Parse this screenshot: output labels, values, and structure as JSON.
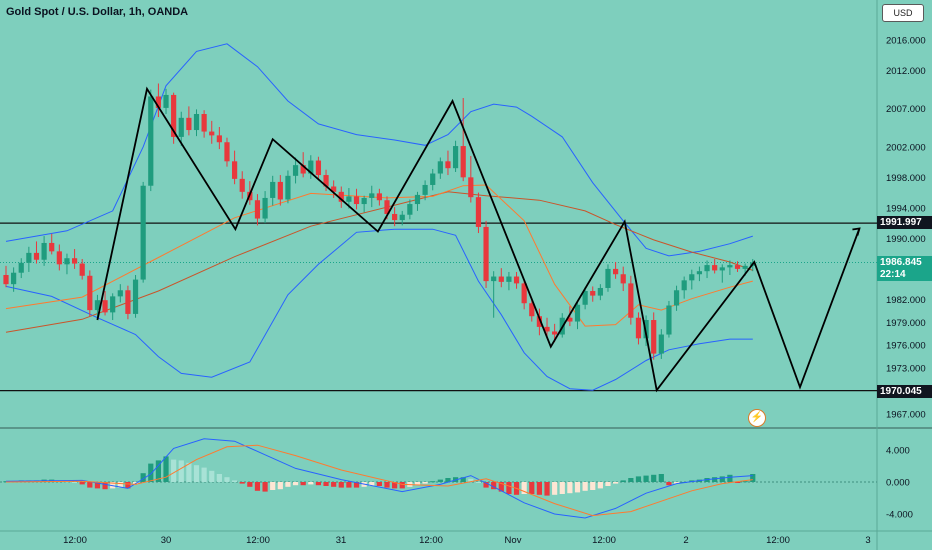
{
  "header": {
    "title": "Gold Spot / U.S. Dollar, 1h, OANDA",
    "currency": "USD"
  },
  "price_tags": {
    "resistance": "1991.997",
    "support": "1970.045",
    "last_price": "1986.845",
    "countdown": "22:14"
  },
  "colors": {
    "background": "#7ecfbd",
    "up_candle": "#1f9c7e",
    "down_candle": "#e8383d",
    "bollinger": "#2962ff",
    "ma_orange": "#ff7a2f",
    "macd_line": "#2962ff",
    "signal_line": "#ff7a2f",
    "hist_pos": "#1f9c7e",
    "hist_pos_weak": "#a8e2d6",
    "hist_neg": "#e8383d",
    "hist_neg_weak": "#fde6d4",
    "pattern": "#000000"
  },
  "icons": {
    "lightning": "lightning-icon"
  },
  "chart_data": [
    {
      "type": "candlestick",
      "title": "Gold Spot / U.S. Dollar, 1h, OANDA",
      "ylim": [
        1965,
        2019
      ],
      "y_ticks": [
        "2016.000",
        "2012.000",
        "2007.000",
        "2002.000",
        "1998.000",
        "1994.000",
        "1990.000",
        "1982.000",
        "1979.000",
        "1976.000",
        "1973.000",
        "1967.000"
      ],
      "x_ticks": [
        "12:00",
        "30",
        "12:00",
        "31",
        "12:00",
        "Nov",
        "12:00",
        "2",
        "12:00",
        "3"
      ],
      "horizontal_lines": [
        1991.997,
        1970.045
      ],
      "last_price": 1986.845,
      "candles_ohlc": [
        [
          1985.2,
          1986.4,
          1983.6,
          1984.0
        ],
        [
          1984.0,
          1986.2,
          1983.0,
          1985.5
        ],
        [
          1985.5,
          1987.4,
          1984.8,
          1986.8
        ],
        [
          1986.8,
          1988.9,
          1985.6,
          1988.1
        ],
        [
          1988.1,
          1989.6,
          1986.7,
          1987.2
        ],
        [
          1987.2,
          1990.3,
          1986.4,
          1989.4
        ],
        [
          1989.4,
          1990.6,
          1987.9,
          1988.3
        ],
        [
          1988.3,
          1989.2,
          1985.8,
          1986.6
        ],
        [
          1986.6,
          1988.0,
          1985.3,
          1987.4
        ],
        [
          1987.4,
          1988.6,
          1986.0,
          1986.7
        ],
        [
          1986.7,
          1987.3,
          1984.6,
          1985.1
        ],
        [
          1985.1,
          1985.8,
          1979.8,
          1980.6
        ],
        [
          1980.6,
          1982.6,
          1979.5,
          1981.9
        ],
        [
          1981.9,
          1983.1,
          1979.9,
          1980.3
        ],
        [
          1980.3,
          1982.8,
          1979.3,
          1982.4
        ],
        [
          1982.4,
          1984.0,
          1981.6,
          1983.2
        ],
        [
          1983.2,
          1983.8,
          1979.4,
          1980.1
        ],
        [
          1980.1,
          1985.2,
          1979.6,
          1984.6
        ],
        [
          1984.6,
          1997.4,
          1984.2,
          1996.9
        ],
        [
          1996.9,
          2009.5,
          1996.2,
          2008.6
        ],
        [
          2008.6,
          2010.3,
          2005.9,
          2007.1
        ],
        [
          2007.1,
          2009.6,
          2006.3,
          2008.8
        ],
        [
          2008.8,
          2009.1,
          2002.4,
          2003.3
        ],
        [
          2003.3,
          2006.6,
          2002.1,
          2005.8
        ],
        [
          2005.8,
          2007.3,
          2003.5,
          2004.2
        ],
        [
          2004.2,
          2006.9,
          2003.4,
          2006.3
        ],
        [
          2006.3,
          2006.8,
          2003.2,
          2004.0
        ],
        [
          2004.0,
          2005.4,
          2002.4,
          2003.5
        ],
        [
          2003.5,
          2004.6,
          2001.7,
          2002.6
        ],
        [
          2002.6,
          2003.2,
          1999.4,
          2000.1
        ],
        [
          2000.1,
          2001.5,
          1997.1,
          1997.8
        ],
        [
          1997.8,
          1998.8,
          1995.2,
          1996.1
        ],
        [
          1996.1,
          1997.5,
          1994.4,
          1995.0
        ],
        [
          1995.0,
          1995.8,
          1991.7,
          1992.6
        ],
        [
          1992.6,
          1996.2,
          1992.0,
          1995.3
        ],
        [
          1995.3,
          1998.2,
          1994.3,
          1997.4
        ],
        [
          1997.4,
          1998.3,
          1994.3,
          1995.1
        ],
        [
          1995.1,
          1998.9,
          1994.6,
          1998.2
        ],
        [
          1998.2,
          2000.6,
          1997.2,
          1999.6
        ],
        [
          1999.6,
          2001.3,
          1998.0,
          1998.5
        ],
        [
          1998.5,
          2000.9,
          1997.8,
          2000.2
        ],
        [
          2000.2,
          2000.7,
          1997.6,
          1998.3
        ],
        [
          1998.3,
          1999.0,
          1996.2,
          1996.8
        ],
        [
          1996.8,
          1997.6,
          1995.3,
          1996.1
        ],
        [
          1996.1,
          1996.8,
          1994.0,
          1994.8
        ],
        [
          1994.8,
          1996.6,
          1993.9,
          1995.5
        ],
        [
          1995.5,
          1996.5,
          1993.8,
          1994.5
        ],
        [
          1994.5,
          1995.6,
          1993.4,
          1995.3
        ],
        [
          1995.3,
          1996.9,
          1994.1,
          1995.9
        ],
        [
          1995.9,
          1996.5,
          1994.3,
          1995.0
        ],
        [
          1995.0,
          1995.5,
          1992.5,
          1993.2
        ],
        [
          1993.2,
          1994.1,
          1991.6,
          1992.4
        ],
        [
          1992.4,
          1993.6,
          1991.7,
          1993.1
        ],
        [
          1993.1,
          1995.1,
          1992.5,
          1994.5
        ],
        [
          1994.5,
          1996.1,
          1993.6,
          1995.7
        ],
        [
          1995.7,
          1997.6,
          1995.0,
          1997.0
        ],
        [
          1997.0,
          1999.1,
          1996.3,
          1998.5
        ],
        [
          1998.5,
          2000.6,
          1997.8,
          2000.1
        ],
        [
          2000.1,
          2001.5,
          1998.3,
          1999.2
        ],
        [
          1999.2,
          2002.8,
          1998.7,
          2002.1
        ],
        [
          2002.1,
          2008.4,
          1997.5,
          1998.0
        ],
        [
          1998.0,
          2000.8,
          1994.7,
          1995.4
        ],
        [
          1995.4,
          1996.0,
          1990.7,
          1991.5
        ],
        [
          1991.5,
          1992.3,
          1983.5,
          1984.4
        ],
        [
          1984.4,
          1985.7,
          1979.6,
          1985.0
        ],
        [
          1985.0,
          1986.1,
          1983.6,
          1984.3
        ],
        [
          1984.3,
          1985.6,
          1983.2,
          1985.0
        ],
        [
          1985.0,
          1985.6,
          1983.4,
          1984.1
        ],
        [
          1984.1,
          1984.6,
          1980.7,
          1981.5
        ],
        [
          1981.5,
          1982.2,
          1979.1,
          1979.8
        ],
        [
          1979.8,
          1980.8,
          1977.3,
          1978.4
        ],
        [
          1978.4,
          1979.6,
          1976.9,
          1977.8
        ],
        [
          1977.8,
          1978.8,
          1976.4,
          1977.4
        ],
        [
          1977.4,
          1980.2,
          1977.0,
          1979.6
        ],
        [
          1979.6,
          1981.1,
          1978.5,
          1979.1
        ],
        [
          1979.1,
          1981.8,
          1978.1,
          1981.3
        ],
        [
          1981.3,
          1983.6,
          1980.7,
          1983.1
        ],
        [
          1983.1,
          1983.7,
          1981.7,
          1982.5
        ],
        [
          1982.5,
          1984.0,
          1981.9,
          1983.5
        ],
        [
          1983.5,
          1986.6,
          1983.0,
          1986.0
        ],
        [
          1986.0,
          1986.9,
          1984.7,
          1985.3
        ],
        [
          1985.3,
          1986.3,
          1983.1,
          1984.1
        ],
        [
          1984.1,
          1985.1,
          1978.7,
          1979.6
        ],
        [
          1979.6,
          1980.3,
          1976.1,
          1976.9
        ],
        [
          1976.9,
          1979.9,
          1975.9,
          1979.3
        ],
        [
          1979.3,
          1980.3,
          1974.1,
          1974.9
        ],
        [
          1974.9,
          1978.1,
          1974.2,
          1977.4
        ],
        [
          1977.4,
          1981.8,
          1977.0,
          1981.2
        ],
        [
          1981.2,
          1983.8,
          1980.5,
          1983.2
        ],
        [
          1983.2,
          1985.0,
          1982.1,
          1984.5
        ],
        [
          1984.5,
          1985.9,
          1983.3,
          1985.3
        ],
        [
          1985.3,
          1986.3,
          1984.4,
          1985.7
        ],
        [
          1985.7,
          1987.1,
          1984.8,
          1986.5
        ],
        [
          1986.5,
          1987.3,
          1985.4,
          1985.8
        ],
        [
          1985.8,
          1986.6,
          1984.2,
          1986.2
        ],
        [
          1986.2,
          1987.1,
          1985.2,
          1986.5
        ],
        [
          1986.5,
          1987.0,
          1985.6,
          1986.0
        ],
        [
          1986.0,
          1986.7,
          1985.1,
          1986.4
        ],
        [
          1986.4,
          1987.3,
          1985.7,
          1986.845
        ]
      ],
      "bollinger_upper": [
        [
          0,
          1989.6
        ],
        [
          8,
          1991.0
        ],
        [
          14,
          1993.6
        ],
        [
          18,
          2002.0
        ],
        [
          21,
          2010.0
        ],
        [
          25,
          2014.5
        ],
        [
          29,
          2015.5
        ],
        [
          33,
          2012.5
        ],
        [
          37,
          2008.0
        ],
        [
          41,
          2005.0
        ],
        [
          46,
          2003.6
        ],
        [
          51,
          2002.9
        ],
        [
          55,
          2002.2
        ],
        [
          58,
          2003.6
        ],
        [
          61,
          2006.6
        ],
        [
          64,
          2007.6
        ],
        [
          67,
          2007.2
        ],
        [
          69,
          2006.0
        ],
        [
          73,
          2003.3
        ],
        [
          77,
          1997.3
        ],
        [
          81,
          1992.3
        ],
        [
          84,
          1988.7
        ],
        [
          87,
          1987.7
        ],
        [
          91,
          1988.3
        ],
        [
          95,
          1989.3
        ],
        [
          98,
          1990.3
        ]
      ],
      "bollinger_lower": [
        [
          0,
          1983.7
        ],
        [
          6,
          1982.4
        ],
        [
          12,
          1979.6
        ],
        [
          17,
          1977.4
        ],
        [
          20,
          1974.5
        ],
        [
          23,
          1972.3
        ],
        [
          27,
          1971.8
        ],
        [
          32,
          1973.8
        ],
        [
          37,
          1982.6
        ],
        [
          41,
          1986.6
        ],
        [
          46,
          1990.8
        ],
        [
          51,
          1991.2
        ],
        [
          56,
          1991.2
        ],
        [
          59,
          1990.4
        ],
        [
          62,
          1984.4
        ],
        [
          65,
          1980.0
        ],
        [
          68,
          1975.0
        ],
        [
          71,
          1971.9
        ],
        [
          74,
          1970.3
        ],
        [
          77,
          1970.1
        ],
        [
          80,
          1971.5
        ],
        [
          84,
          1974.0
        ],
        [
          87,
          1975.4
        ],
        [
          91,
          1976.2
        ],
        [
          95,
          1976.8
        ],
        [
          98,
          1976.8
        ]
      ],
      "ma_orange": [
        [
          0,
          1980.8
        ],
        [
          10,
          1982.3
        ],
        [
          20,
          1987.5
        ],
        [
          30,
          1992.7
        ],
        [
          40,
          1995.9
        ],
        [
          50,
          1995.3
        ],
        [
          56,
          1995.5
        ],
        [
          60,
          1996.9
        ],
        [
          63,
          1997.0
        ],
        [
          68,
          1992.3
        ],
        [
          72,
          1984.0
        ],
        [
          76,
          1978.5
        ],
        [
          80,
          1978.7
        ],
        [
          83,
          1981.3
        ],
        [
          86,
          1980.6
        ],
        [
          90,
          1982.1
        ],
        [
          95,
          1983.6
        ],
        [
          98,
          1984.4
        ]
      ],
      "ma_slow": [
        [
          0,
          1977.7
        ],
        [
          10,
          1979.4
        ],
        [
          20,
          1983.1
        ],
        [
          30,
          1987.6
        ],
        [
          40,
          1991.6
        ],
        [
          50,
          1994.1
        ],
        [
          58,
          1996.1
        ],
        [
          63,
          1995.6
        ],
        [
          70,
          1995.0
        ],
        [
          76,
          1993.6
        ],
        [
          80,
          1991.8
        ],
        [
          85,
          1989.8
        ],
        [
          90,
          1988.2
        ],
        [
          95,
          1986.9
        ],
        [
          98,
          1985.8
        ]
      ]
    },
    {
      "type": "macd",
      "ylim": [
        -5,
        6
      ],
      "y_ticks": [
        "4.000",
        "0.000",
        "-4.000"
      ],
      "histogram": [
        0.1,
        0.1,
        0.2,
        0.2,
        0.2,
        0.3,
        0.3,
        0.2,
        0.1,
        0.0,
        -0.3,
        -0.7,
        -0.8,
        -0.9,
        -0.8,
        -0.7,
        -0.8,
        -0.3,
        1.1,
        2.3,
        2.7,
        3.2,
        2.8,
        2.7,
        2.4,
        2.1,
        1.8,
        1.4,
        1.0,
        0.6,
        0.2,
        -0.2,
        -0.6,
        -1.1,
        -1.2,
        -1.0,
        -0.9,
        -0.6,
        -0.4,
        -0.4,
        -0.3,
        -0.4,
        -0.5,
        -0.6,
        -0.7,
        -0.7,
        -0.7,
        -0.6,
        -0.5,
        -0.5,
        -0.7,
        -0.8,
        -0.8,
        -0.6,
        -0.4,
        -0.2,
        0.1,
        0.3,
        0.5,
        0.6,
        0.6,
        0.4,
        0.0,
        -0.7,
        -0.9,
        -1.2,
        -1.5,
        -1.6,
        -1.5,
        -1.5,
        -1.6,
        -1.7,
        -1.6,
        -1.5,
        -1.4,
        -1.3,
        -1.1,
        -1.0,
        -0.8,
        -0.5,
        -0.2,
        0.2,
        0.5,
        0.7,
        0.8,
        0.9,
        1.0,
        -0.4,
        -0.2,
        0.0,
        0.2,
        0.3,
        0.5,
        0.6,
        0.7,
        0.9,
        -0.1,
        0.1,
        1.0
      ],
      "macd_line": [
        [
          0,
          0.1
        ],
        [
          10,
          0.2
        ],
        [
          16,
          -0.8
        ],
        [
          19,
          1.0
        ],
        [
          22,
          4.2
        ],
        [
          26,
          5.4
        ],
        [
          30,
          5.1
        ],
        [
          34,
          3.4
        ],
        [
          38,
          1.7
        ],
        [
          44,
          0.3
        ],
        [
          52,
          -1.2
        ],
        [
          57,
          -0.3
        ],
        [
          61,
          0.8
        ],
        [
          64,
          -0.6
        ],
        [
          68,
          -2.6
        ],
        [
          72,
          -4.0
        ],
        [
          76,
          -4.5
        ],
        [
          80,
          -3.3
        ],
        [
          84,
          -1.4
        ],
        [
          88,
          -0.2
        ],
        [
          92,
          0.3
        ],
        [
          95,
          0.6
        ],
        [
          98,
          0.8
        ]
      ],
      "signal_line": [
        [
          0,
          0.0
        ],
        [
          10,
          0.1
        ],
        [
          17,
          -0.3
        ],
        [
          21,
          0.6
        ],
        [
          25,
          2.8
        ],
        [
          29,
          4.4
        ],
        [
          33,
          4.6
        ],
        [
          38,
          3.3
        ],
        [
          44,
          1.5
        ],
        [
          52,
          -0.3
        ],
        [
          58,
          -0.5
        ],
        [
          63,
          0.4
        ],
        [
          67,
          -0.8
        ],
        [
          72,
          -2.7
        ],
        [
          77,
          -4.2
        ],
        [
          82,
          -3.7
        ],
        [
          86,
          -2.4
        ],
        [
          90,
          -1.1
        ],
        [
          94,
          -0.2
        ],
        [
          98,
          0.3
        ]
      ]
    }
  ]
}
